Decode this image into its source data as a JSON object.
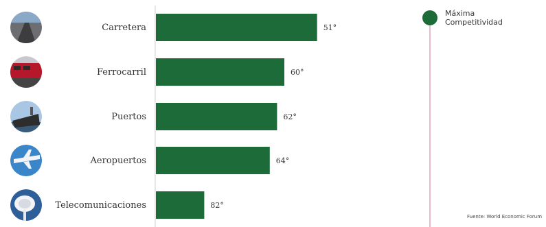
{
  "chart_data": {
    "type": "bar",
    "orientation": "horizontal",
    "categories": [
      "Carretera",
      "Ferrocarril",
      "Puertos",
      "Aeropuertos",
      "Telecomunicaciones"
    ],
    "values": [
      51,
      60,
      62,
      64,
      82
    ],
    "value_labels": [
      "51°",
      "60°",
      "62°",
      "64°",
      "82°"
    ],
    "icons": [
      "road-icon",
      "train-icon",
      "ship-icon",
      "airplane-icon",
      "satellite-dish-icon"
    ],
    "bar_color": "#1e6b3a",
    "scale": "rank (lower rank = longer bar)",
    "legend": {
      "label": "Máxima Competitividad",
      "color": "#1e6b3a",
      "line_color": "#d2789a"
    },
    "source": "Fuente: World Economic Forum"
  }
}
